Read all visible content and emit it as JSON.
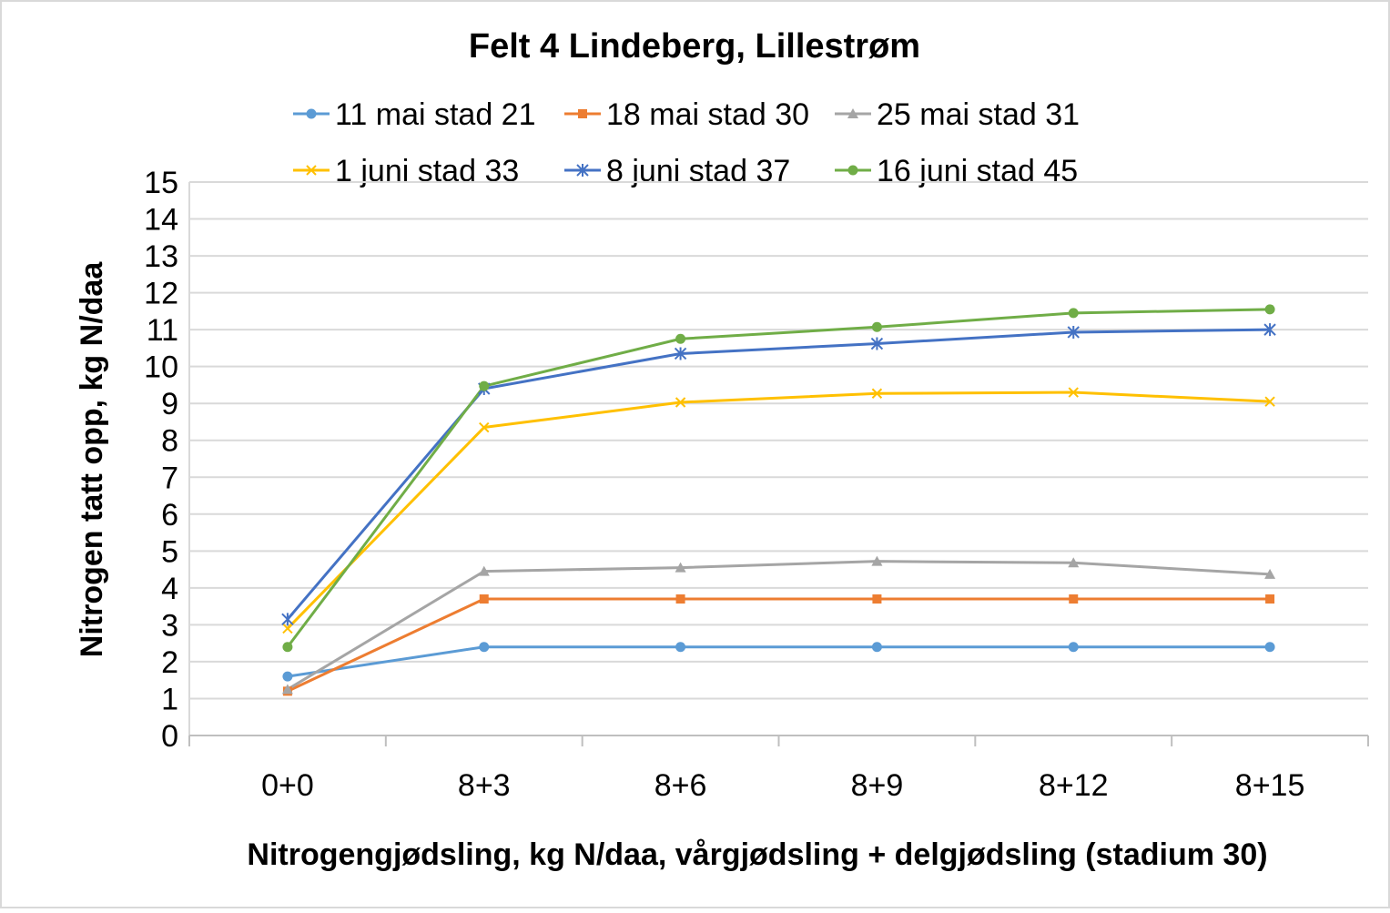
{
  "chart_data": {
    "type": "line",
    "title": "Felt 4 Lindeberg, Lillestrøm",
    "xlabel": "Nitrogengjødsling, kg N/daa, vårgjødsling + delgjødsling (stadium 30)",
    "ylabel": "Nitrogen tatt opp, kg N/daa",
    "categories": [
      "0+0",
      "8+3",
      "8+6",
      "8+9",
      "8+12",
      "8+15"
    ],
    "ylim": [
      0,
      15
    ],
    "ytick_step": 1,
    "grid": true,
    "legend_position": "top",
    "series": [
      {
        "name": "11 mai stad 21",
        "color": "#5B9BD5",
        "marker": "circle",
        "values": [
          1.6,
          2.4,
          2.4,
          2.4,
          2.4,
          2.4
        ]
      },
      {
        "name": "18 mai stad 30",
        "color": "#ED7D31",
        "marker": "square",
        "values": [
          1.2,
          3.7,
          3.7,
          3.7,
          3.7,
          3.7
        ]
      },
      {
        "name": "25 mai stad 31",
        "color": "#A5A5A5",
        "marker": "triangle",
        "values": [
          1.25,
          4.45,
          4.55,
          4.72,
          4.68,
          4.37
        ]
      },
      {
        "name": "1 juni stad 33",
        "color": "#FFC000",
        "marker": "x",
        "values": [
          2.9,
          8.35,
          9.03,
          9.27,
          9.3,
          9.05
        ]
      },
      {
        "name": "8 juni stad 37",
        "color": "#4472C4",
        "marker": "star",
        "values": [
          3.15,
          9.4,
          10.35,
          10.62,
          10.93,
          11.0
        ]
      },
      {
        "name": "16 juni stad 45",
        "color": "#70AD47",
        "marker": "circle",
        "values": [
          2.4,
          9.47,
          10.75,
          11.07,
          11.45,
          11.55
        ]
      }
    ]
  }
}
